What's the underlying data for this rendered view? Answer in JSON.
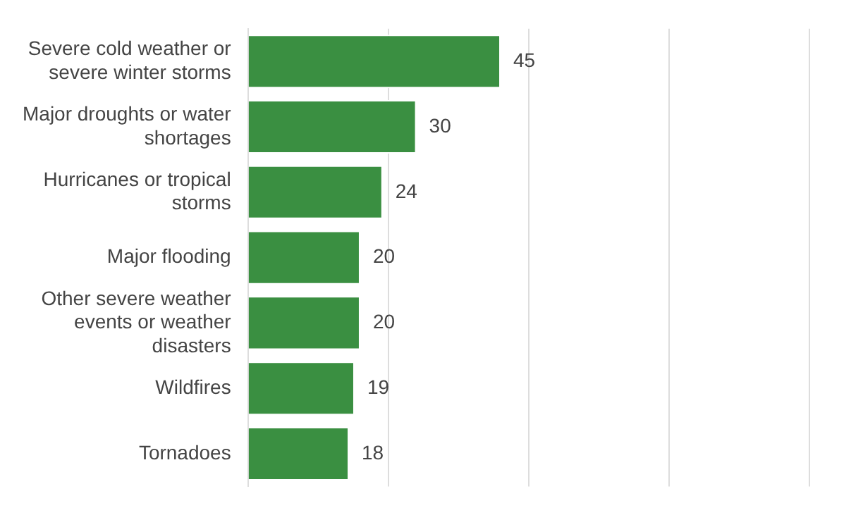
{
  "chart_data": {
    "type": "bar",
    "orientation": "horizontal",
    "categories": [
      "Severe cold weather or severe winter storms",
      "Major droughts or water shortages",
      "Hurricanes or tropical storms",
      "Major flooding",
      "Other severe weather events or weather disasters",
      "Wildfires",
      "Tornadoes"
    ],
    "values": [
      45,
      30,
      24,
      20,
      20,
      19,
      18
    ],
    "color": "#3a8f41",
    "xlim": [
      0,
      100
    ],
    "xticks": [
      {
        "value": 0,
        "label": null
      },
      {
        "value": 25,
        "label": null
      },
      {
        "value": 50,
        "label": null
      },
      {
        "value": 75,
        "label": null
      },
      {
        "value": 100,
        "label": null
      }
    ],
    "grid": "x",
    "tick_labels": "y",
    "data_labels": true,
    "legend": false
  }
}
